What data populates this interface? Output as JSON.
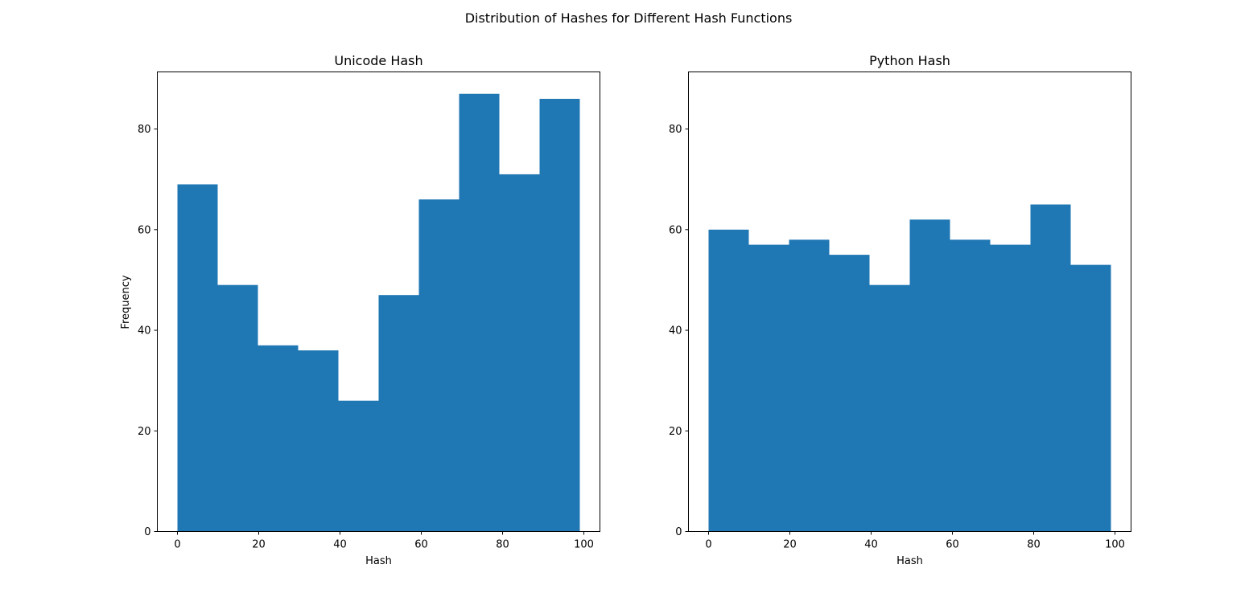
{
  "figure": {
    "suptitle": "Distribution of Hashes for Different Hash Functions"
  },
  "chart_data": [
    {
      "type": "bar",
      "subtype": "histogram",
      "title": "Unicode Hash",
      "xlabel": "Hash",
      "ylabel": "Frequency",
      "bin_edges": [
        0,
        9.9,
        19.8,
        29.7,
        39.6,
        49.5,
        59.4,
        69.3,
        79.2,
        89.1,
        99
      ],
      "values": [
        69,
        49,
        37,
        36,
        26,
        47,
        66,
        87,
        71,
        86
      ],
      "xlim": [
        -4.95,
        103.95
      ],
      "ylim": [
        0,
        91.35
      ],
      "xticks": [
        0,
        20,
        40,
        60,
        80,
        100
      ],
      "yticks": [
        0,
        20,
        40,
        60,
        80
      ],
      "grid": false,
      "color": "#1f77b4"
    },
    {
      "type": "bar",
      "subtype": "histogram",
      "title": "Python Hash",
      "xlabel": "Hash",
      "ylabel": "",
      "bin_edges": [
        0,
        9.9,
        19.8,
        29.7,
        39.6,
        49.5,
        59.4,
        69.3,
        79.2,
        89.1,
        99
      ],
      "values": [
        60,
        57,
        58,
        55,
        49,
        62,
        58,
        57,
        65,
        53
      ],
      "xlim": [
        -4.95,
        103.95
      ],
      "ylim": [
        0,
        91.35
      ],
      "xticks": [
        0,
        20,
        40,
        60,
        80,
        100
      ],
      "yticks": [
        0,
        20,
        40,
        60,
        80
      ],
      "grid": false,
      "color": "#1f77b4"
    }
  ]
}
